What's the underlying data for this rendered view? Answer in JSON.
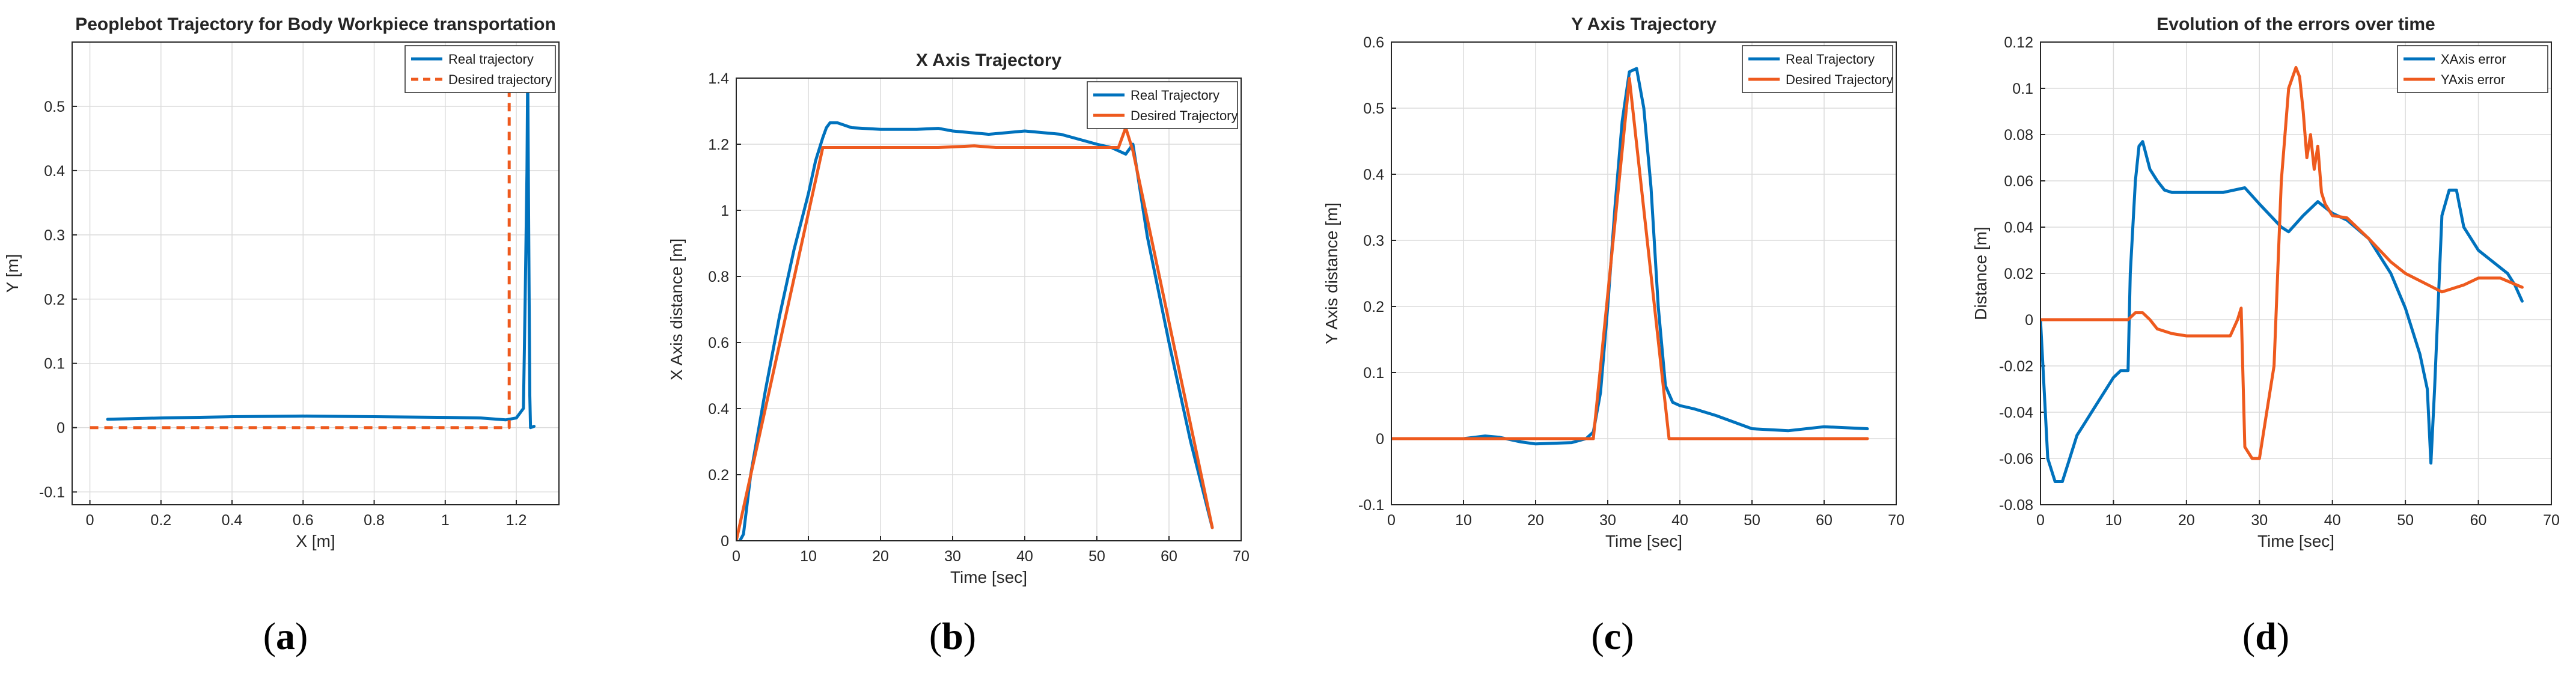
{
  "colors": {
    "real": "#0072BD",
    "desired": "#EE5A1E"
  },
  "chart_data": [
    {
      "id": "a",
      "type": "line",
      "title": "Peoplebot Trajectory for Body Workpiece transportation",
      "xlabel": "X [m]",
      "ylabel": "Y [m]",
      "xlim": [
        -0.05,
        1.32
      ],
      "ylim": [
        -0.12,
        0.6
      ],
      "xticks": [
        0,
        0.2,
        0.4,
        0.6,
        0.8,
        1,
        1.2
      ],
      "xtick_labels": [
        "0",
        "0.2",
        "0.4",
        "0.6",
        "0.8",
        "1",
        "1.2"
      ],
      "yticks": [
        -0.1,
        0,
        0.1,
        0.2,
        0.3,
        0.4,
        0.5
      ],
      "ytick_labels": [
        "-0.1",
        "0",
        "0.1",
        "0.2",
        "0.3",
        "0.4",
        "0.5"
      ],
      "legend": "top-right",
      "caption": "a",
      "series": [
        {
          "name": "Real trajectory",
          "color": "real",
          "dash": false,
          "x": [
            0.05,
            0.2,
            0.4,
            0.6,
            0.8,
            1.0,
            1.1,
            1.17,
            1.2,
            1.22,
            1.225,
            1.23,
            1.232,
            1.235,
            1.238,
            1.24,
            1.25
          ],
          "y": [
            0.013,
            0.015,
            0.017,
            0.018,
            0.017,
            0.016,
            0.015,
            0.012,
            0.015,
            0.03,
            0.2,
            0.4,
            0.56,
            0.3,
            0.05,
            0.0,
            0.002
          ]
        },
        {
          "name": "Desired trajectory",
          "color": "desired",
          "dash": true,
          "x": [
            0.0,
            1.18,
            1.18
          ],
          "y": [
            0.0,
            0.0,
            0.55
          ]
        }
      ]
    },
    {
      "id": "b",
      "type": "line",
      "title": "X Axis Trajectory",
      "xlabel": "Time [sec]",
      "ylabel": "X Axis distance [m]",
      "xlim": [
        0,
        70
      ],
      "ylim": [
        0,
        1.4
      ],
      "xticks": [
        0,
        10,
        20,
        30,
        40,
        50,
        60,
        70
      ],
      "xtick_labels": [
        "0",
        "10",
        "20",
        "30",
        "40",
        "50",
        "60",
        "70"
      ],
      "yticks": [
        0,
        0.2,
        0.4,
        0.6,
        0.8,
        1,
        1.2,
        1.4
      ],
      "ytick_labels": [
        "0",
        "0.2",
        "0.4",
        "0.6",
        "0.8",
        "1",
        "1.2",
        "1.4"
      ],
      "legend": "top-right",
      "caption": "b",
      "series": [
        {
          "name": "Real Trajectory",
          "color": "real",
          "dash": false,
          "x": [
            0.5,
            1,
            2,
            4,
            6,
            8,
            10,
            11,
            12,
            12.5,
            13,
            14,
            16,
            20,
            25,
            28,
            30,
            35,
            40,
            45,
            50,
            52,
            53,
            54,
            55,
            57,
            60,
            63,
            66
          ],
          "y": [
            0,
            0.02,
            0.2,
            0.45,
            0.68,
            0.88,
            1.05,
            1.15,
            1.22,
            1.25,
            1.265,
            1.265,
            1.25,
            1.245,
            1.245,
            1.248,
            1.24,
            1.23,
            1.24,
            1.23,
            1.2,
            1.19,
            1.18,
            1.17,
            1.2,
            0.92,
            0.6,
            0.3,
            0.04
          ]
        },
        {
          "name": "Desired Trajectory",
          "color": "desired",
          "dash": false,
          "x": [
            0,
            12,
            28,
            33,
            36,
            52,
            53,
            54,
            55,
            66
          ],
          "y": [
            0,
            1.19,
            1.19,
            1.195,
            1.19,
            1.19,
            1.19,
            1.25,
            1.18,
            0.04
          ]
        }
      ]
    },
    {
      "id": "c",
      "type": "line",
      "title": "Y Axis Trajectory",
      "xlabel": "Time [sec]",
      "ylabel": "Y Axis distance [m]",
      "xlim": [
        0,
        70
      ],
      "ylim": [
        -0.1,
        0.6
      ],
      "xticks": [
        0,
        10,
        20,
        30,
        40,
        50,
        60,
        70
      ],
      "xtick_labels": [
        "0",
        "10",
        "20",
        "30",
        "40",
        "50",
        "60",
        "70"
      ],
      "yticks": [
        -0.1,
        0,
        0.1,
        0.2,
        0.3,
        0.4,
        0.5,
        0.6
      ],
      "ytick_labels": [
        "-0.1",
        "0",
        "0.1",
        "0.2",
        "0.3",
        "0.4",
        "0.5",
        "0.6"
      ],
      "legend": "top-right",
      "caption": "c",
      "series": [
        {
          "name": "Real Trajectory",
          "color": "real",
          "dash": false,
          "x": [
            0,
            10,
            13,
            15,
            18,
            20,
            25,
            27,
            28,
            29,
            30,
            31,
            32,
            33,
            34,
            35,
            36,
            37,
            38,
            39,
            40,
            42,
            45,
            50,
            55,
            60,
            66
          ],
          "y": [
            0,
            0,
            0.004,
            0.002,
            -0.005,
            -0.008,
            -0.006,
            0.0,
            0.01,
            0.07,
            0.2,
            0.35,
            0.48,
            0.555,
            0.56,
            0.5,
            0.38,
            0.2,
            0.08,
            0.055,
            0.05,
            0.045,
            0.035,
            0.015,
            0.012,
            0.018,
            0.015
          ]
        },
        {
          "name": "Desired Trajectory",
          "color": "desired",
          "dash": false,
          "x": [
            0,
            28,
            33,
            38.5,
            66
          ],
          "y": [
            0,
            0,
            0.545,
            0,
            0
          ]
        }
      ]
    },
    {
      "id": "d",
      "type": "line",
      "title": "Evolution of the errors over time",
      "xlabel": "Time [sec]",
      "ylabel": "Distance [m]",
      "xlim": [
        0,
        70
      ],
      "ylim": [
        -0.08,
        0.12
      ],
      "xticks": [
        0,
        10,
        20,
        30,
        40,
        50,
        60,
        70
      ],
      "xtick_labels": [
        "0",
        "10",
        "20",
        "30",
        "40",
        "50",
        "60",
        "70"
      ],
      "yticks": [
        -0.08,
        -0.06,
        -0.04,
        -0.02,
        0,
        0.02,
        0.04,
        0.06,
        0.08,
        0.1,
        0.12
      ],
      "ytick_labels": [
        "-0.08",
        "-0.06",
        "-0.04",
        "-0.02",
        "0",
        "0.02",
        "0.04",
        "0.06",
        "0.08",
        "0.1",
        "0.12"
      ],
      "legend": "top-right",
      "caption": "d",
      "series": [
        {
          "name": "XAxis error",
          "color": "real",
          "dash": false,
          "x": [
            0,
            1,
            2,
            3,
            4,
            5,
            6,
            7,
            8,
            9,
            10,
            11,
            12,
            12.3,
            13,
            13.5,
            14,
            15,
            16,
            17,
            18,
            20,
            25,
            28,
            30,
            33,
            34,
            36,
            38,
            40,
            42,
            45,
            48,
            50,
            52,
            53,
            53.5,
            54,
            55,
            56,
            57,
            58,
            60,
            62,
            64,
            65,
            66
          ],
          "y": [
            0,
            -0.06,
            -0.07,
            -0.07,
            -0.06,
            -0.05,
            -0.045,
            -0.04,
            -0.035,
            -0.03,
            -0.025,
            -0.022,
            -0.022,
            0.02,
            0.06,
            0.075,
            0.077,
            0.065,
            0.06,
            0.056,
            0.055,
            0.055,
            0.055,
            0.057,
            0.05,
            0.04,
            0.038,
            0.045,
            0.051,
            0.046,
            0.043,
            0.035,
            0.02,
            0.005,
            -0.015,
            -0.03,
            -0.062,
            -0.03,
            0.045,
            0.056,
            0.056,
            0.04,
            0.03,
            0.025,
            0.02,
            0.015,
            0.008
          ]
        },
        {
          "name": "YAxis error",
          "color": "desired",
          "dash": false,
          "x": [
            0,
            10,
            12,
            13,
            14,
            15,
            16,
            18,
            20,
            22,
            24,
            26,
            27,
            27.5,
            28,
            29,
            30,
            31,
            32,
            33,
            34,
            35,
            35.5,
            36,
            36.5,
            37,
            37.5,
            38,
            38.5,
            39,
            40,
            42,
            45,
            48,
            50,
            55,
            58,
            60,
            63,
            66
          ],
          "y": [
            0,
            0,
            0.0,
            0.003,
            0.003,
            0.0,
            -0.004,
            -0.006,
            -0.007,
            -0.007,
            -0.007,
            -0.007,
            0.0,
            0.005,
            -0.055,
            -0.06,
            -0.06,
            -0.04,
            -0.02,
            0.06,
            0.1,
            0.109,
            0.105,
            0.09,
            0.07,
            0.08,
            0.065,
            0.075,
            0.055,
            0.05,
            0.045,
            0.044,
            0.035,
            0.025,
            0.02,
            0.012,
            0.015,
            0.018,
            0.018,
            0.014
          ]
        }
      ]
    }
  ]
}
